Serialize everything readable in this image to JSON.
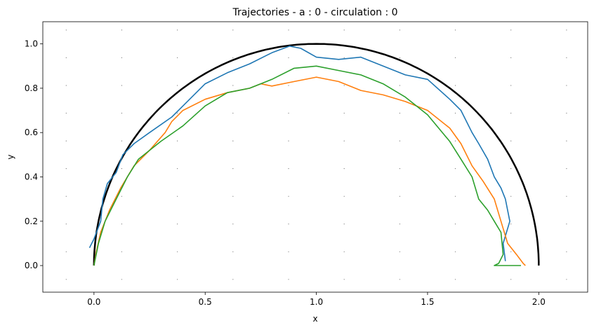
{
  "chart_data": {
    "type": "line",
    "title": "Trajectories - a : 0 - circulation : 0",
    "xlabel": "x",
    "ylabel": "y",
    "xlim": [
      -0.23,
      2.22
    ],
    "ylim": [
      -0.12,
      1.1
    ],
    "xticks": [
      "0.0",
      "0.5",
      "1.0",
      "1.5",
      "2.0"
    ],
    "xtick_values": [
      0.0,
      0.5,
      1.0,
      1.5,
      2.0
    ],
    "yticks": [
      "0.0",
      "0.2",
      "0.4",
      "0.6",
      "0.8",
      "1.0"
    ],
    "ytick_values": [
      0.0,
      0.2,
      0.4,
      0.6,
      0.8,
      1.0
    ],
    "grid": "dotted points",
    "reference_curve": {
      "shape": "semicircle",
      "center": [
        1.0,
        0.0
      ],
      "radius": 1.0,
      "color": "#000000"
    },
    "series": [
      {
        "color": "#1f77b4",
        "x": [
          -0.02,
          0.0,
          0.03,
          0.04,
          0.06,
          0.1,
          0.13,
          0.18,
          0.25,
          0.35,
          0.5,
          0.6,
          0.7,
          0.8,
          0.88,
          0.93,
          1.0,
          1.1,
          1.2,
          1.3,
          1.4,
          1.5,
          1.6,
          1.65,
          1.7,
          1.73,
          1.77,
          1.8,
          1.83,
          1.85,
          1.87,
          1.84,
          1.85
        ],
        "y": [
          0.08,
          0.12,
          0.2,
          0.3,
          0.37,
          0.42,
          0.5,
          0.55,
          0.6,
          0.67,
          0.82,
          0.87,
          0.91,
          0.96,
          0.99,
          0.98,
          0.94,
          0.93,
          0.94,
          0.9,
          0.86,
          0.84,
          0.75,
          0.7,
          0.6,
          0.55,
          0.48,
          0.4,
          0.35,
          0.3,
          0.2,
          0.1,
          0.02
        ]
      },
      {
        "color": "#ff7f0e",
        "x": [
          0.0,
          0.01,
          0.03,
          0.07,
          0.12,
          0.18,
          0.25,
          0.32,
          0.35,
          0.4,
          0.5,
          0.6,
          0.7,
          0.75,
          0.8,
          0.9,
          1.0,
          1.1,
          1.2,
          1.3,
          1.4,
          1.5,
          1.6,
          1.65,
          1.7,
          1.75,
          1.8,
          1.83,
          1.86,
          1.9,
          1.93,
          1.94
        ],
        "y": [
          0.0,
          0.06,
          0.15,
          0.25,
          0.35,
          0.45,
          0.52,
          0.6,
          0.65,
          0.7,
          0.75,
          0.78,
          0.8,
          0.82,
          0.81,
          0.83,
          0.85,
          0.83,
          0.79,
          0.77,
          0.74,
          0.7,
          0.62,
          0.55,
          0.45,
          0.38,
          0.3,
          0.2,
          0.1,
          0.05,
          0.01,
          0.0
        ]
      },
      {
        "color": "#2ca02c",
        "x": [
          0.0,
          0.02,
          0.05,
          0.1,
          0.15,
          0.2,
          0.3,
          0.4,
          0.5,
          0.6,
          0.7,
          0.8,
          0.9,
          1.0,
          1.1,
          1.2,
          1.3,
          1.4,
          1.5,
          1.6,
          1.65,
          1.7,
          1.73,
          1.77,
          1.8,
          1.83,
          1.84,
          1.82,
          1.8,
          1.88,
          1.92
        ],
        "y": [
          0.0,
          0.1,
          0.2,
          0.3,
          0.4,
          0.48,
          0.56,
          0.63,
          0.72,
          0.78,
          0.8,
          0.84,
          0.89,
          0.9,
          0.88,
          0.86,
          0.82,
          0.76,
          0.68,
          0.56,
          0.48,
          0.4,
          0.3,
          0.25,
          0.2,
          0.15,
          0.05,
          0.01,
          0.0,
          0.0,
          0.0
        ]
      }
    ]
  }
}
